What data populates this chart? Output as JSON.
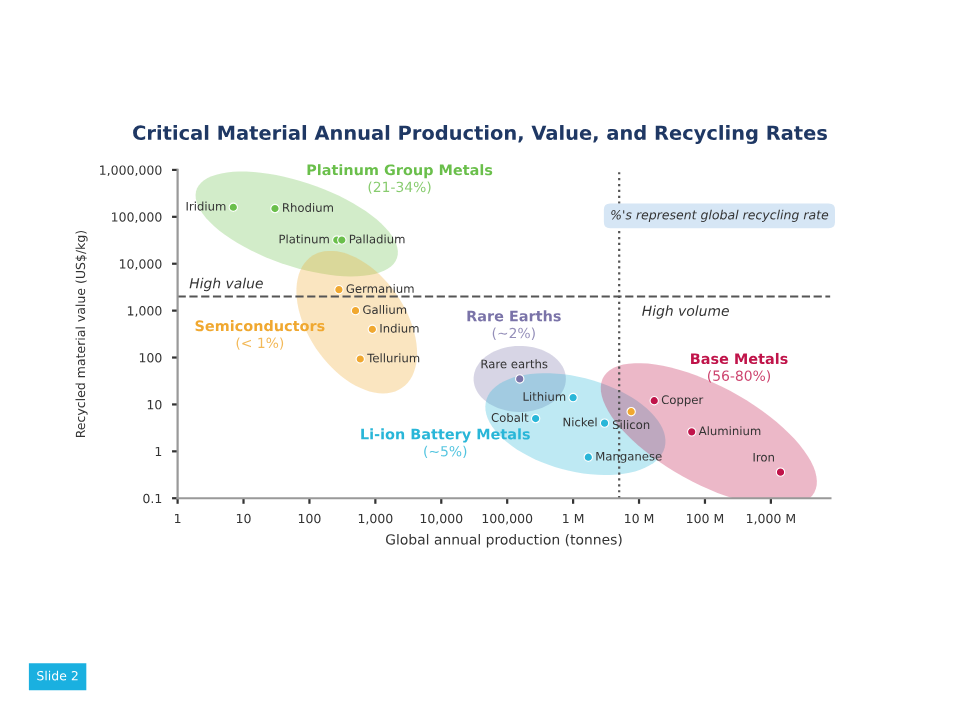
{
  "chart_data": {
    "type": "scatter",
    "title": "Critical Material Annual Production, Value, and Recycling Rates",
    "xlabel": "Global annual production (tonnes)",
    "ylabel": "Recycled material value (US$/kg)",
    "log": "xy",
    "marker": "circle",
    "grid": false,
    "legend": false,
    "xlim": [
      1,
      8000000000
    ],
    "ylim": [
      0.1,
      1000000
    ],
    "xticks": [
      1,
      10,
      100,
      {
        "value": 1000,
        "label": "1,000"
      },
      {
        "value": 10000,
        "label": "10,000"
      },
      {
        "value": 100000,
        "label": "100,000"
      },
      {
        "value": 1000000,
        "label": "1 M"
      },
      {
        "value": 10000000,
        "label": "10 M"
      },
      {
        "value": 100000000,
        "label": "100 M"
      },
      {
        "value": 1000000000,
        "label": "1,000 M"
      }
    ],
    "yticks": [
      0.1,
      1,
      10,
      100,
      {
        "value": 1000,
        "label": "1,000"
      },
      {
        "value": 10000,
        "label": "10,000"
      },
      {
        "value": 100000,
        "label": "100,000"
      },
      {
        "value": 1000000,
        "label": "1,000,000"
      }
    ],
    "series": [
      {
        "name": "Platinum Group Metals",
        "color": "#6abf4b",
        "x": [
          7,
          30,
          260,
          310
        ],
        "values": [
          160000,
          150000,
          32000,
          32000
        ]
      },
      {
        "name": "Semiconductors",
        "color": "#f0a830",
        "x": [
          280,
          500,
          900,
          590
        ],
        "values": [
          2800,
          1000,
          400,
          93
        ]
      },
      {
        "name": "Rare Earths",
        "color": "#7a73a8",
        "x": [
          155000
        ],
        "values": [
          35
        ]
      },
      {
        "name": "Li-ion Battery Metals",
        "color": "#29b6d8",
        "x": [
          1000000,
          270000,
          3000000,
          1700000
        ],
        "values": [
          14,
          5,
          4,
          0.75
        ]
      },
      {
        "name": "Base Metals",
        "color": "#c0144a",
        "x": [
          17000000,
          63000000,
          1400000000
        ],
        "values": [
          12,
          2.6,
          0.36
        ]
      },
      {
        "color": "#f0a830",
        "x": [
          7600000
        ],
        "values": [
          7
        ]
      }
    ],
    "ref_lines": [
      {
        "axis": "y",
        "value": 2000,
        "label": "High value",
        "line_style": "dashed",
        "color": "#555555"
      },
      {
        "axis": "x",
        "value": 5000000,
        "label": "High volume",
        "line_style": "dotted",
        "color": "#555555"
      }
    ],
    "annotations": [
      "(21-34%)",
      "(< 1%)",
      "(~2%)",
      "(~5%)",
      "(56-80%)",
      "%'s represent global recycling rate",
      "Slide 2",
      {
        "text": "Iridium",
        "x": 7,
        "y": 160000
      },
      {
        "text": "Rhodium",
        "x": 30,
        "y": 150000
      },
      {
        "text": "Platinum",
        "x": 260,
        "y": 32000
      },
      {
        "text": "Palladium",
        "x": 310,
        "y": 32000
      },
      {
        "text": "Germanium",
        "x": 280,
        "y": 2800
      },
      {
        "text": "Gallium",
        "x": 500,
        "y": 1000
      },
      {
        "text": "Indium",
        "x": 900,
        "y": 400
      },
      {
        "text": "Tellurium",
        "x": 590,
        "y": 93
      },
      {
        "text": "Rare earths",
        "x": 155000,
        "y": 35
      },
      {
        "text": "Lithium",
        "x": 1000000,
        "y": 14
      },
      {
        "text": "Cobalt",
        "x": 270000,
        "y": 5
      },
      {
        "text": "Nickel",
        "x": 3000000,
        "y": 4
      },
      {
        "text": "Manganese",
        "x": 1700000,
        "y": 0.75
      },
      {
        "text": "Copper",
        "x": 17000000,
        "y": 12
      },
      {
        "text": "Aluminium",
        "x": 63000000,
        "y": 2.6
      },
      {
        "text": "Iron",
        "x": 1400000000,
        "y": 0.36
      },
      {
        "text": "Silicon",
        "x": 7600000,
        "y": 7
      }
    ]
  }
}
